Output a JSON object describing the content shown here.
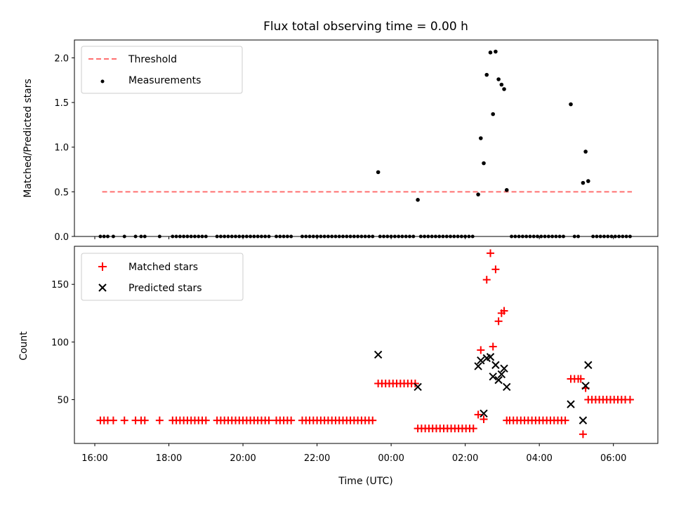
{
  "chart_data": {
    "title": "Flux total observing time = 0.00 h",
    "type": "scatter",
    "x_range_hours": [
      15.45,
      31.2
    ],
    "x_ticks": [
      "16:00",
      "18:00",
      "20:00",
      "22:00",
      "00:00",
      "02:00",
      "04:00",
      "06:00"
    ],
    "x_tick_values": [
      16,
      18,
      20,
      22,
      24,
      26,
      28,
      30
    ],
    "xlabel": "Time (UTC)",
    "panels": [
      {
        "ylabel": "Matched/Predicted stars",
        "ylim": [
          0,
          2.2
        ],
        "y_ticks": [
          "0.0",
          "0.5",
          "1.0",
          "1.5",
          "2.0"
        ],
        "y_tick_values": [
          0,
          0.5,
          1.0,
          1.5,
          2.0
        ],
        "legend_position": "upper-left",
        "threshold": {
          "name": "Threshold",
          "value": 0.5,
          "x_start": 16.2,
          "x_end": 30.5,
          "color": "#ff7070"
        },
        "measurements": {
          "name": "Measurements",
          "color": "#000000",
          "points": [
            [
              23.65,
              0.72
            ],
            [
              24.72,
              0.41
            ],
            [
              26.35,
              0.47
            ],
            [
              26.42,
              1.1
            ],
            [
              26.5,
              0.82
            ],
            [
              26.58,
              1.81
            ],
            [
              26.68,
              2.06
            ],
            [
              26.75,
              1.37
            ],
            [
              26.82,
              2.07
            ],
            [
              26.9,
              1.76
            ],
            [
              26.98,
              1.7
            ],
            [
              27.05,
              1.65
            ],
            [
              27.12,
              0.52
            ],
            [
              28.85,
              1.48
            ],
            [
              29.18,
              0.6
            ],
            [
              29.25,
              0.95
            ],
            [
              29.32,
              0.62
            ]
          ],
          "zero_points": [
            16.15,
            16.25,
            16.35,
            16.5,
            16.8,
            17.1,
            17.25,
            17.35,
            17.75,
            18.1,
            18.2,
            18.3,
            18.4,
            18.5,
            18.6,
            18.7,
            18.8,
            18.9,
            19.0,
            19.3,
            19.4,
            19.5,
            19.6,
            19.7,
            19.8,
            19.9,
            20.0,
            20.1,
            20.2,
            20.3,
            20.4,
            20.5,
            20.6,
            20.7,
            20.9,
            21.0,
            21.1,
            21.2,
            21.3,
            21.6,
            21.7,
            21.8,
            21.9,
            22.0,
            22.1,
            22.2,
            22.3,
            22.4,
            22.5,
            22.6,
            22.7,
            22.8,
            22.9,
            23.0,
            23.1,
            23.2,
            23.3,
            23.4,
            23.5,
            23.7,
            23.8,
            23.9,
            24.0,
            24.1,
            24.2,
            24.3,
            24.4,
            24.5,
            24.6,
            24.8,
            24.9,
            25.0,
            25.1,
            25.2,
            25.3,
            25.4,
            25.5,
            25.6,
            25.7,
            25.8,
            25.9,
            26.0,
            26.1,
            26.2,
            27.25,
            27.35,
            27.45,
            27.55,
            27.65,
            27.75,
            27.85,
            27.95,
            28.05,
            28.15,
            28.25,
            28.35,
            28.45,
            28.55,
            28.65,
            28.95,
            29.05,
            29.45,
            29.55,
            29.65,
            29.75,
            29.85,
            29.95,
            30.05,
            30.15,
            30.25,
            30.35,
            30.45
          ]
        }
      },
      {
        "ylabel": "Count",
        "ylim": [
          12,
          183
        ],
        "y_ticks": [
          "50",
          "100",
          "150"
        ],
        "y_tick_values": [
          50,
          100,
          150
        ],
        "legend_position": "upper-left",
        "matched": {
          "name": "Matched stars",
          "color": "#ff0000",
          "points": [
            [
              16.15,
              32
            ],
            [
              16.25,
              32
            ],
            [
              16.35,
              32
            ],
            [
              16.5,
              32
            ],
            [
              16.8,
              32
            ],
            [
              17.1,
              32
            ],
            [
              17.25,
              32
            ],
            [
              17.35,
              32
            ],
            [
              17.75,
              32
            ],
            [
              18.1,
              32
            ],
            [
              18.2,
              32
            ],
            [
              18.3,
              32
            ],
            [
              18.4,
              32
            ],
            [
              18.5,
              32
            ],
            [
              18.6,
              32
            ],
            [
              18.7,
              32
            ],
            [
              18.8,
              32
            ],
            [
              18.9,
              32
            ],
            [
              19.0,
              32
            ],
            [
              19.3,
              32
            ],
            [
              19.4,
              32
            ],
            [
              19.5,
              32
            ],
            [
              19.6,
              32
            ],
            [
              19.7,
              32
            ],
            [
              19.8,
              32
            ],
            [
              19.9,
              32
            ],
            [
              20.0,
              32
            ],
            [
              20.1,
              32
            ],
            [
              20.2,
              32
            ],
            [
              20.3,
              32
            ],
            [
              20.4,
              32
            ],
            [
              20.5,
              32
            ],
            [
              20.6,
              32
            ],
            [
              20.7,
              32
            ],
            [
              20.9,
              32
            ],
            [
              21.0,
              32
            ],
            [
              21.1,
              32
            ],
            [
              21.2,
              32
            ],
            [
              21.3,
              32
            ],
            [
              21.6,
              32
            ],
            [
              21.7,
              32
            ],
            [
              21.8,
              32
            ],
            [
              21.9,
              32
            ],
            [
              22.0,
              32
            ],
            [
              22.1,
              32
            ],
            [
              22.2,
              32
            ],
            [
              22.3,
              32
            ],
            [
              22.4,
              32
            ],
            [
              22.5,
              32
            ],
            [
              22.6,
              32
            ],
            [
              22.7,
              32
            ],
            [
              22.8,
              32
            ],
            [
              22.9,
              32
            ],
            [
              23.0,
              32
            ],
            [
              23.1,
              32
            ],
            [
              23.2,
              32
            ],
            [
              23.3,
              32
            ],
            [
              23.4,
              32
            ],
            [
              23.5,
              32
            ],
            [
              23.65,
              64
            ],
            [
              23.75,
              64
            ],
            [
              23.85,
              64
            ],
            [
              23.95,
              64
            ],
            [
              24.05,
              64
            ],
            [
              24.15,
              64
            ],
            [
              24.25,
              64
            ],
            [
              24.35,
              64
            ],
            [
              24.45,
              64
            ],
            [
              24.55,
              64
            ],
            [
              24.65,
              64
            ],
            [
              24.72,
              25
            ],
            [
              24.82,
              25
            ],
            [
              24.92,
              25
            ],
            [
              25.02,
              25
            ],
            [
              25.12,
              25
            ],
            [
              25.22,
              25
            ],
            [
              25.32,
              25
            ],
            [
              25.42,
              25
            ],
            [
              25.52,
              25
            ],
            [
              25.62,
              25
            ],
            [
              25.72,
              25
            ],
            [
              25.82,
              25
            ],
            [
              25.92,
              25
            ],
            [
              26.02,
              25
            ],
            [
              26.12,
              25
            ],
            [
              26.22,
              25
            ],
            [
              26.35,
              37
            ],
            [
              26.42,
              93
            ],
            [
              26.5,
              33
            ],
            [
              26.58,
              154
            ],
            [
              26.68,
              177
            ],
            [
              26.75,
              96
            ],
            [
              26.82,
              163
            ],
            [
              26.9,
              118
            ],
            [
              26.98,
              125
            ],
            [
              27.05,
              127
            ],
            [
              27.12,
              32
            ],
            [
              27.2,
              32
            ],
            [
              27.3,
              32
            ],
            [
              27.4,
              32
            ],
            [
              27.5,
              32
            ],
            [
              27.6,
              32
            ],
            [
              27.7,
              32
            ],
            [
              27.8,
              32
            ],
            [
              27.9,
              32
            ],
            [
              28.0,
              32
            ],
            [
              28.1,
              32
            ],
            [
              28.2,
              32
            ],
            [
              28.3,
              32
            ],
            [
              28.4,
              32
            ],
            [
              28.5,
              32
            ],
            [
              28.6,
              32
            ],
            [
              28.7,
              32
            ],
            [
              28.85,
              68
            ],
            [
              28.95,
              68
            ],
            [
              29.05,
              68
            ],
            [
              29.12,
              68
            ],
            [
              29.18,
              20
            ],
            [
              29.25,
              60
            ],
            [
              29.32,
              50
            ],
            [
              29.42,
              50
            ],
            [
              29.52,
              50
            ],
            [
              29.62,
              50
            ],
            [
              29.72,
              50
            ],
            [
              29.82,
              50
            ],
            [
              29.92,
              50
            ],
            [
              30.02,
              50
            ],
            [
              30.12,
              50
            ],
            [
              30.22,
              50
            ],
            [
              30.32,
              50
            ],
            [
              30.45,
              50
            ]
          ]
        },
        "predicted": {
          "name": "Predicted stars",
          "color": "#000000",
          "points": [
            [
              23.65,
              89
            ],
            [
              24.72,
              61
            ],
            [
              26.35,
              79
            ],
            [
              26.42,
              84
            ],
            [
              26.5,
              38
            ],
            [
              26.58,
              86
            ],
            [
              26.68,
              87
            ],
            [
              26.75,
              70
            ],
            [
              26.82,
              80
            ],
            [
              26.9,
              67
            ],
            [
              26.98,
              72
            ],
            [
              27.05,
              77
            ],
            [
              27.12,
              61
            ],
            [
              28.85,
              46
            ],
            [
              29.18,
              32
            ],
            [
              29.25,
              62
            ],
            [
              29.32,
              80
            ]
          ]
        }
      }
    ]
  }
}
